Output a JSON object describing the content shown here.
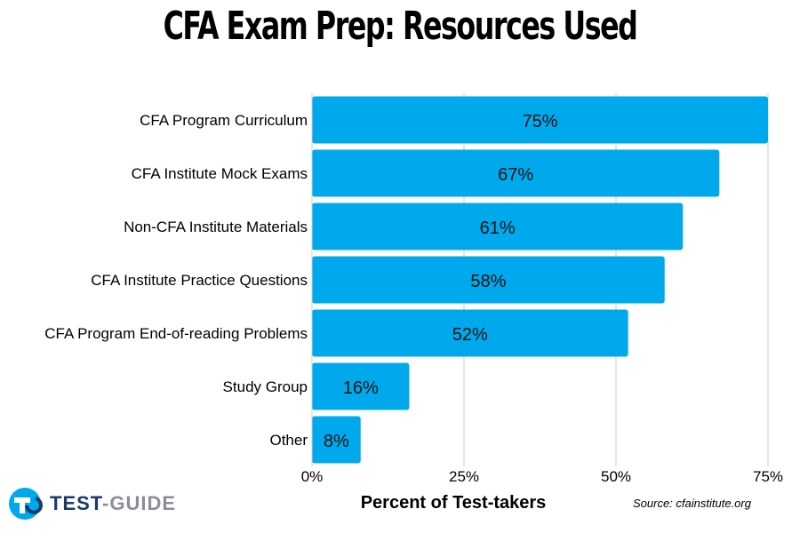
{
  "chart_data": {
    "type": "bar",
    "orientation": "horizontal",
    "title": "CFA Exam Prep: Resources Used",
    "xlabel": "Percent of Test-takers",
    "ylabel": "",
    "categories": [
      "CFA Program Curriculum",
      "CFA Institute Mock Exams",
      "Non-CFA Institute Materials",
      "CFA Institute Practice Questions",
      "CFA Program End-of-reading Problems",
      "Study Group",
      "Other"
    ],
    "values": [
      75,
      67,
      61,
      58,
      52,
      16,
      8
    ],
    "data_labels": [
      "75%",
      "67%",
      "61%",
      "58%",
      "52%",
      "16%",
      "8%"
    ],
    "xlim": [
      0,
      75
    ],
    "xticks": [
      0,
      25,
      50,
      75
    ],
    "xtick_labels": [
      "0%",
      "25%",
      "50%",
      "75%"
    ],
    "grid": "vertical",
    "bar_color": "#00a9ec",
    "grid_color": "#cccccc",
    "source": "Source: cfainstitute.org"
  },
  "branding": {
    "logo_icon": "test-guide-logo-icon",
    "logo_word1": "TEST",
    "logo_sep": "-",
    "logo_word2": "GUIDE",
    "brand_color": "#1b3a6b",
    "accent_color": "#00a9ec"
  }
}
